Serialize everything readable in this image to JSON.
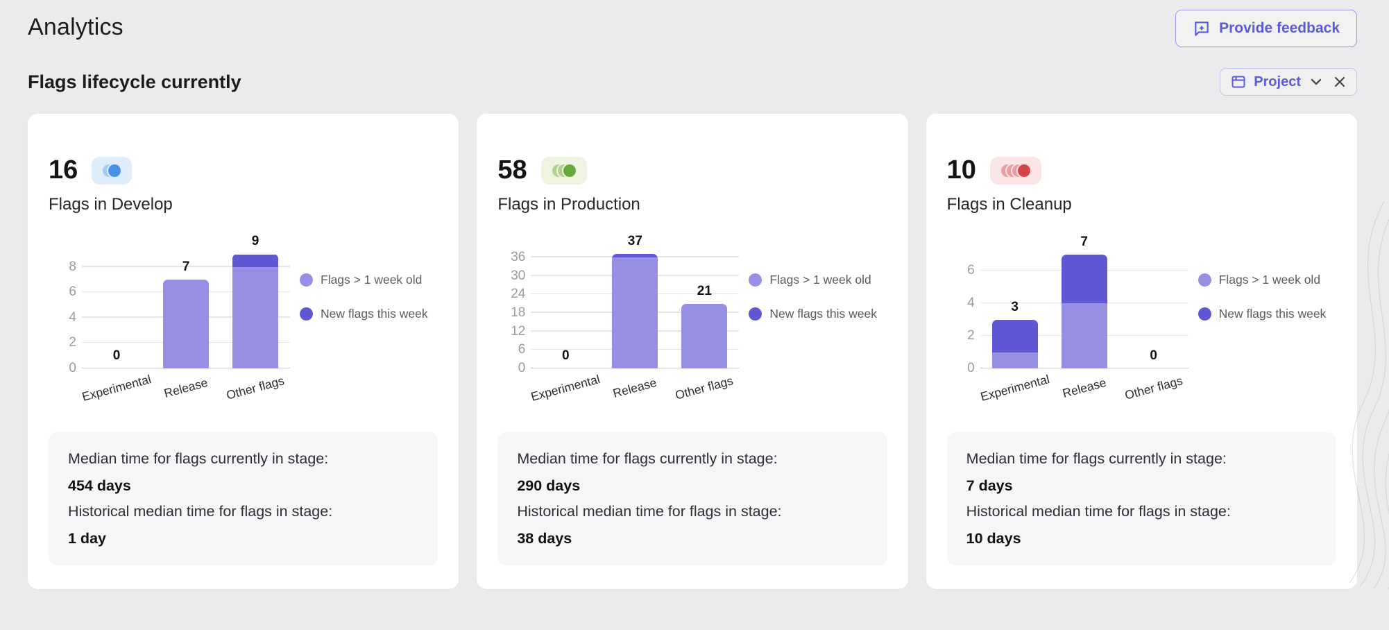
{
  "page": {
    "title": "Analytics",
    "feedback_button": "Provide feedback",
    "section_heading": "Flags lifecycle currently",
    "filter_label": "Project"
  },
  "legend": {
    "old": "Flags > 1 week old",
    "new": "New flags this week"
  },
  "stats_labels": {
    "current": "Median time for flags currently in stage:",
    "historical": "Historical median time for flags in stage:"
  },
  "colors": {
    "accent": "#5a5bd5",
    "bar_old": "#968fe3",
    "bar_new": "#5f57d4",
    "grid": "#e6e6e9",
    "baseline": "#c9c9cf",
    "tick_text": "#9a9aa3"
  },
  "cards": [
    {
      "count": "16",
      "title": "Flags in Develop",
      "median_current": "454 days",
      "median_historical": "1 day",
      "badge": {
        "bg": "#ddedfc",
        "light": "#a3cbf1",
        "solid": "#4792e4",
        "circles": 2
      }
    },
    {
      "count": "58",
      "title": "Flags in Production",
      "median_current": "290 days",
      "median_historical": "38 days",
      "badge": {
        "bg": "#eef4e0",
        "light": "#b2cf8e",
        "solid": "#69a83e",
        "circles": 3
      }
    },
    {
      "count": "10",
      "title": "Flags in Cleanup",
      "median_current": "7 days",
      "median_historical": "10 days",
      "badge": {
        "bg": "#fbe5e7",
        "light": "#ec9ba0",
        "solid": "#d6444b",
        "circles": 4
      }
    }
  ],
  "chart_data": [
    {
      "type": "bar",
      "stacked": true,
      "title": "Flags in Develop",
      "categories": [
        "Experimental",
        "Release",
        "Other flags"
      ],
      "series": [
        {
          "name": "Flags > 1 week old",
          "values": [
            0,
            7,
            8
          ]
        },
        {
          "name": "New flags this week",
          "values": [
            0,
            0,
            1
          ]
        }
      ],
      "totals": [
        0,
        7,
        9
      ],
      "yticks": [
        0,
        2,
        4,
        6,
        8
      ],
      "ylim": [
        0,
        9.3
      ],
      "grid": true,
      "legend_position": "right"
    },
    {
      "type": "bar",
      "stacked": true,
      "title": "Flags in Production",
      "categories": [
        "Experimental",
        "Release",
        "Other flags"
      ],
      "series": [
        {
          "name": "Flags > 1 week old",
          "values": [
            0,
            36,
            21
          ]
        },
        {
          "name": "New flags this week",
          "values": [
            0,
            1,
            0
          ]
        }
      ],
      "totals": [
        0,
        37,
        21
      ],
      "yticks": [
        0,
        6,
        12,
        18,
        24,
        30,
        36
      ],
      "ylim": [
        0,
        38.2
      ],
      "grid": true,
      "legend_position": "right"
    },
    {
      "type": "bar",
      "stacked": true,
      "title": "Flags in Cleanup",
      "categories": [
        "Experimental",
        "Release",
        "Other flags"
      ],
      "series": [
        {
          "name": "Flags > 1 week old",
          "values": [
            1,
            4,
            0
          ]
        },
        {
          "name": "New flags this week",
          "values": [
            2,
            3,
            0
          ]
        }
      ],
      "totals": [
        3,
        7,
        0
      ],
      "yticks": [
        0,
        2,
        4,
        6
      ],
      "ylim": [
        0,
        7.25
      ],
      "grid": true,
      "legend_position": "right"
    }
  ]
}
